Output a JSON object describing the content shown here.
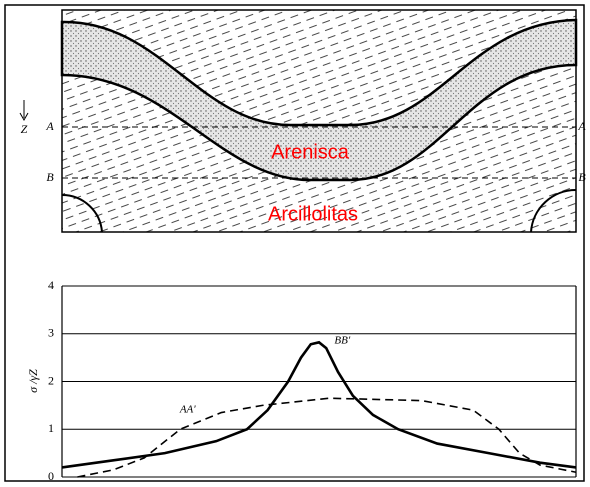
{
  "diagram": {
    "axis_label": "Z",
    "lines": [
      {
        "left": "A",
        "right": "A"
      },
      {
        "left": "B",
        "right": "B"
      }
    ],
    "layers": [
      "Arenisca",
      "Arcillolitas"
    ]
  },
  "chart_data": {
    "type": "line",
    "y_label": "σ /γZ",
    "xlim": [
      0,
      100
    ],
    "ylim": [
      0,
      4
    ],
    "yticks": [
      0,
      1,
      2,
      3,
      4
    ],
    "grid": true,
    "series": [
      {
        "name": "AA'",
        "color": "#000000",
        "dashed": true,
        "x": [
          3,
          10,
          16,
          23,
          31,
          39,
          52,
          70,
          80,
          85,
          89,
          93,
          100
        ],
        "values": [
          0,
          0.15,
          0.4,
          1.0,
          1.35,
          1.5,
          1.65,
          1.6,
          1.4,
          1.0,
          0.5,
          0.25,
          0.1
        ]
      },
      {
        "name": "BB'",
        "color": "#000000",
        "dashed": false,
        "x": [
          0,
          10,
          20,
          30,
          36,
          40,
          44,
          46.5,
          48.4,
          50,
          51.4,
          53.7,
          56.6,
          60.5,
          65.4,
          73,
          83,
          93,
          100
        ],
        "values": [
          0.2,
          0.35,
          0.5,
          0.75,
          1.0,
          1.4,
          2.0,
          2.5,
          2.78,
          2.82,
          2.7,
          2.2,
          1.7,
          1.3,
          1.0,
          0.7,
          0.5,
          0.3,
          0.2
        ]
      }
    ]
  }
}
